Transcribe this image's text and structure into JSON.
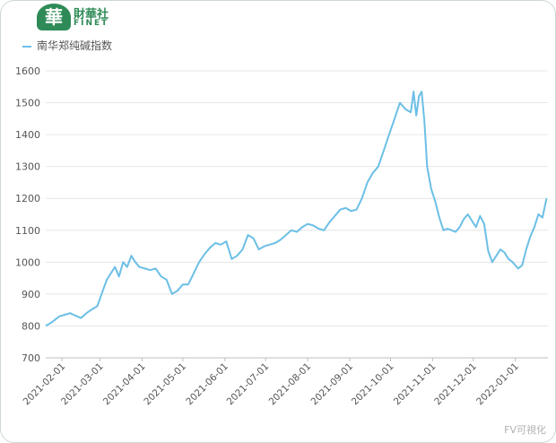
{
  "logo": {
    "text_cn": "財華社",
    "text_en": "FINET",
    "mark_char": "華"
  },
  "watermark": "FV可視化",
  "chart_data": {
    "type": "line",
    "title": "",
    "xlabel": "",
    "ylabel": "",
    "legend_position": "top-left",
    "grid": true,
    "ylim": [
      700,
      1600
    ],
    "yticks": [
      700,
      800,
      900,
      1000,
      1100,
      1200,
      1300,
      1400,
      1500,
      1600
    ],
    "xticks": [
      "2021-02-01",
      "2021-03-01",
      "2021-04-01",
      "2021-05-01",
      "2021-06-01",
      "2021-07-01",
      "2021-08-01",
      "2021-09-01",
      "2021-10-01",
      "2021-11-01",
      "2021-12-01",
      "2022-01-01"
    ],
    "colors": {
      "line": "#6cbfe6",
      "grid": "#e6e6e6",
      "axis_text": "#555555"
    },
    "series": [
      {
        "name": "南华郑纯碱指数",
        "points": [
          [
            "2021-01-20",
            800
          ],
          [
            "2021-01-24",
            810
          ],
          [
            "2021-01-27",
            820
          ],
          [
            "2021-01-30",
            830
          ],
          [
            "2021-02-03",
            835
          ],
          [
            "2021-02-07",
            840
          ],
          [
            "2021-02-11",
            832
          ],
          [
            "2021-02-15",
            825
          ],
          [
            "2021-02-19",
            840
          ],
          [
            "2021-02-23",
            852
          ],
          [
            "2021-02-27",
            862
          ],
          [
            "2021-03-03",
            910
          ],
          [
            "2021-03-06",
            945
          ],
          [
            "2021-03-09",
            965
          ],
          [
            "2021-03-12",
            985
          ],
          [
            "2021-03-15",
            955
          ],
          [
            "2021-03-18",
            1000
          ],
          [
            "2021-03-21",
            985
          ],
          [
            "2021-03-24",
            1020
          ],
          [
            "2021-03-27",
            1000
          ],
          [
            "2021-03-30",
            985
          ],
          [
            "2021-04-03",
            980
          ],
          [
            "2021-04-07",
            975
          ],
          [
            "2021-04-11",
            980
          ],
          [
            "2021-04-15",
            955
          ],
          [
            "2021-04-19",
            945
          ],
          [
            "2021-04-23",
            900
          ],
          [
            "2021-04-27",
            910
          ],
          [
            "2021-05-01",
            930
          ],
          [
            "2021-05-05",
            930
          ],
          [
            "2021-05-09",
            965
          ],
          [
            "2021-05-13",
            1000
          ],
          [
            "2021-05-17",
            1025
          ],
          [
            "2021-05-21",
            1045
          ],
          [
            "2021-05-25",
            1060
          ],
          [
            "2021-05-29",
            1055
          ],
          [
            "2021-06-02",
            1065
          ],
          [
            "2021-06-06",
            1010
          ],
          [
            "2021-06-10",
            1020
          ],
          [
            "2021-06-14",
            1040
          ],
          [
            "2021-06-18",
            1085
          ],
          [
            "2021-06-22",
            1075
          ],
          [
            "2021-06-26",
            1040
          ],
          [
            "2021-06-30",
            1050
          ],
          [
            "2021-07-04",
            1055
          ],
          [
            "2021-07-08",
            1060
          ],
          [
            "2021-07-12",
            1070
          ],
          [
            "2021-07-16",
            1085
          ],
          [
            "2021-07-20",
            1100
          ],
          [
            "2021-07-24",
            1095
          ],
          [
            "2021-07-28",
            1110
          ],
          [
            "2021-08-01",
            1120
          ],
          [
            "2021-08-05",
            1115
          ],
          [
            "2021-08-09",
            1105
          ],
          [
            "2021-08-13",
            1100
          ],
          [
            "2021-08-17",
            1125
          ],
          [
            "2021-08-21",
            1145
          ],
          [
            "2021-08-25",
            1165
          ],
          [
            "2021-08-29",
            1170
          ],
          [
            "2021-09-02",
            1160
          ],
          [
            "2021-09-06",
            1165
          ],
          [
            "2021-09-10",
            1200
          ],
          [
            "2021-09-14",
            1250
          ],
          [
            "2021-09-18",
            1280
          ],
          [
            "2021-09-22",
            1300
          ],
          [
            "2021-09-26",
            1350
          ],
          [
            "2021-09-30",
            1400
          ],
          [
            "2021-10-04",
            1450
          ],
          [
            "2021-10-08",
            1500
          ],
          [
            "2021-10-12",
            1480
          ],
          [
            "2021-10-16",
            1470
          ],
          [
            "2021-10-18",
            1535
          ],
          [
            "2021-10-20",
            1460
          ],
          [
            "2021-10-22",
            1520
          ],
          [
            "2021-10-24",
            1535
          ],
          [
            "2021-10-26",
            1440
          ],
          [
            "2021-10-28",
            1300
          ],
          [
            "2021-10-31",
            1230
          ],
          [
            "2021-11-03",
            1190
          ],
          [
            "2021-11-06",
            1140
          ],
          [
            "2021-11-09",
            1100
          ],
          [
            "2021-11-12",
            1105
          ],
          [
            "2021-11-15",
            1100
          ],
          [
            "2021-11-18",
            1095
          ],
          [
            "2021-11-21",
            1110
          ],
          [
            "2021-11-24",
            1135
          ],
          [
            "2021-11-27",
            1150
          ],
          [
            "2021-11-30",
            1130
          ],
          [
            "2021-12-03",
            1110
          ],
          [
            "2021-12-06",
            1145
          ],
          [
            "2021-12-09",
            1120
          ],
          [
            "2021-12-12",
            1035
          ],
          [
            "2021-12-15",
            1000
          ],
          [
            "2021-12-18",
            1020
          ],
          [
            "2021-12-21",
            1040
          ],
          [
            "2021-12-24",
            1030
          ],
          [
            "2021-12-27",
            1010
          ],
          [
            "2021-12-30",
            1000
          ],
          [
            "2022-01-03",
            980
          ],
          [
            "2022-01-06",
            990
          ],
          [
            "2022-01-09",
            1040
          ],
          [
            "2022-01-12",
            1080
          ],
          [
            "2022-01-15",
            1110
          ],
          [
            "2022-01-18",
            1150
          ],
          [
            "2022-01-21",
            1140
          ],
          [
            "2022-01-24",
            1200
          ]
        ]
      }
    ]
  }
}
